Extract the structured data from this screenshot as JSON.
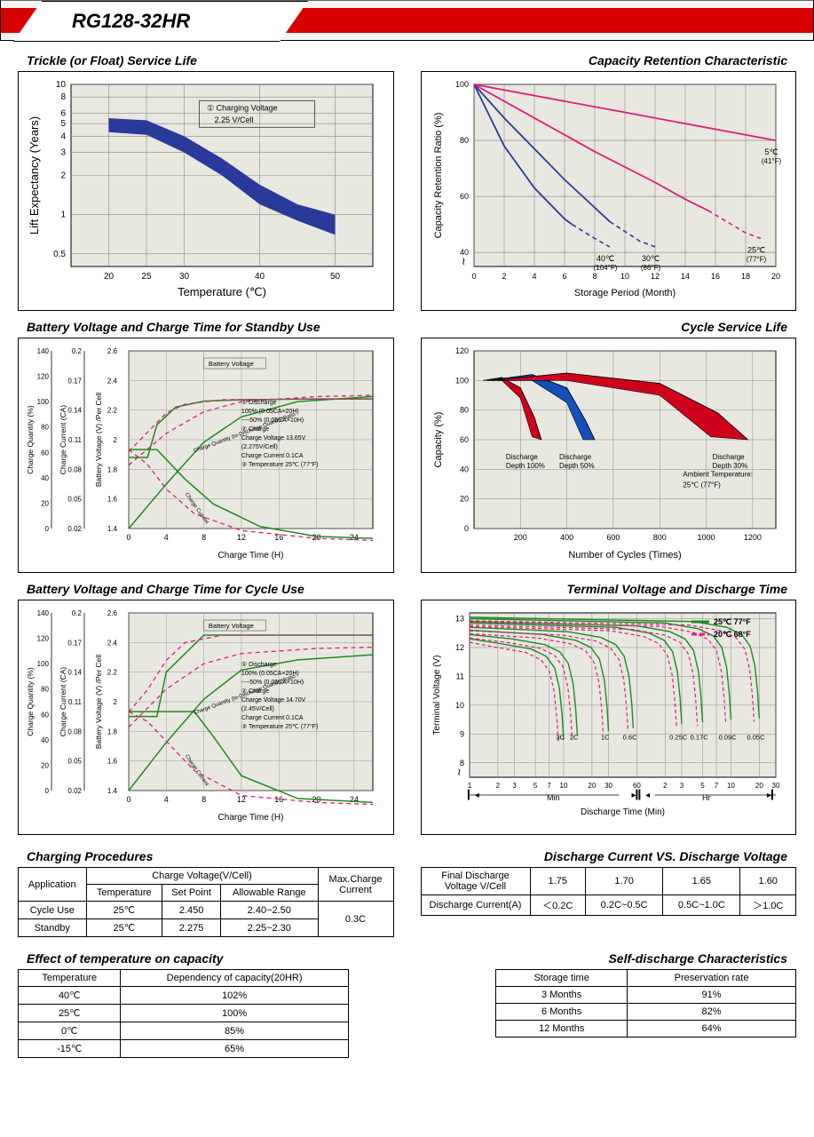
{
  "header": {
    "model": "RG128-32HR"
  },
  "sections": {
    "trickle": {
      "title": "Trickle (or Float) Service Life",
      "xlabel": "Temperature (℃)",
      "ylabel": "Lift  Expectancy (Years)",
      "x_ticks": [
        20,
        25,
        30,
        40,
        50
      ],
      "y_ticks": [
        0.5,
        1,
        2,
        3,
        4,
        5,
        6,
        8,
        10
      ],
      "xlim": [
        15,
        55
      ],
      "ylim_log": [
        0.4,
        10
      ],
      "band_top": [
        [
          20,
          5.5
        ],
        [
          25,
          5.3
        ],
        [
          30,
          4.0
        ],
        [
          35,
          2.7
        ],
        [
          40,
          1.7
        ],
        [
          45,
          1.2
        ],
        [
          50,
          1.0
        ]
      ],
      "band_bot": [
        [
          20,
          4.3
        ],
        [
          25,
          4.1
        ],
        [
          30,
          3.0
        ],
        [
          35,
          2.0
        ],
        [
          40,
          1.2
        ],
        [
          45,
          0.9
        ],
        [
          50,
          0.7
        ]
      ],
      "band_color": "#2a3a9a",
      "note": "① Charging Voltage\n    2.25 V/Cell",
      "background": "#e8e8e0",
      "grid_color": "#888"
    },
    "capacity_retention": {
      "title": "Capacity Retention Characteristic",
      "xlabel": "Storage Period (Month)",
      "ylabel": "Capacity Retention Ratio (%)",
      "x_ticks": [
        0,
        2,
        4,
        6,
        8,
        10,
        12,
        14,
        16,
        18,
        20
      ],
      "y_ticks": [
        40,
        60,
        80,
        100
      ],
      "xlim": [
        0,
        20
      ],
      "ylim": [
        35,
        100
      ],
      "curves": [
        {
          "label": "40℃",
          "sub": "(104°F)",
          "color": "#2a3a9a",
          "solid": [
            [
              0,
              100
            ],
            [
              2,
              78
            ],
            [
              4,
              63
            ],
            [
              6,
              52
            ],
            [
              6.5,
              50
            ]
          ],
          "dash": [
            [
              6.5,
              50
            ],
            [
              8,
              45
            ],
            [
              9,
              42
            ]
          ]
        },
        {
          "label": "30℃",
          "sub": "(86°F)",
          "color": "#2a3a9a",
          "solid": [
            [
              0,
              100
            ],
            [
              2,
              88
            ],
            [
              4,
              77
            ],
            [
              6,
              66
            ],
            [
              8,
              56
            ],
            [
              9,
              51
            ]
          ],
          "dash": [
            [
              9,
              51
            ],
            [
              11,
              44
            ],
            [
              12,
              42
            ]
          ]
        },
        {
          "label": "25℃",
          "sub": "(77°F)",
          "color": "#e21a7a",
          "solid": [
            [
              0,
              100
            ],
            [
              4,
              88
            ],
            [
              8,
              76
            ],
            [
              12,
              65
            ],
            [
              14,
              59
            ],
            [
              15.5,
              55
            ]
          ],
          "dash": [
            [
              15.5,
              55
            ],
            [
              18,
              47
            ],
            [
              19,
              45
            ]
          ]
        },
        {
          "label": "5℃",
          "sub": "(41°F)",
          "color": "#e21a7a",
          "solid": [
            [
              0,
              100
            ],
            [
              10,
              90
            ],
            [
              20,
              80
            ]
          ],
          "dash": []
        }
      ],
      "background": "#e8e8e0",
      "grid_color": "#888"
    },
    "charge_standby": {
      "title": "Battery Voltage and Charge Time for Standby Use",
      "xlabel": "Charge Time (H)",
      "x_ticks": [
        0,
        4,
        8,
        12,
        16,
        20,
        24
      ],
      "xlim": [
        0,
        26
      ],
      "axes": [
        {
          "label": "Charge Quantity (%)",
          "ticks": [
            0,
            20,
            40,
            60,
            80,
            100,
            120,
            140
          ]
        },
        {
          "label": "Charge Current (CA)",
          "ticks": [
            0.02,
            0.05,
            0.08,
            0.11,
            0.14,
            0.17,
            0.2
          ]
        },
        {
          "label": "Battery Voltage (V) /Per Cell",
          "ticks": [
            1.4,
            1.6,
            1.8,
            2.0,
            2.2,
            2.4,
            2.6
          ]
        }
      ],
      "notes": [
        "① Discharge",
        "   100% (0.05CA×20H)",
        "   ----50% (0.05CA×10H)",
        "② Charge",
        "   Charge Voltage 13.65V",
        "   (2.275V/Cell)",
        "   Charge Current 0.1CA",
        "③ Temperature 25℃ (77°F)"
      ],
      "volt_solid": {
        "color": "#1e8a1e",
        "pts": [
          [
            0,
            1.88
          ],
          [
            2,
            1.88
          ],
          [
            3,
            2.1
          ],
          [
            5,
            2.22
          ],
          [
            8,
            2.26
          ],
          [
            12,
            2.27
          ],
          [
            20,
            2.275
          ],
          [
            26,
            2.275
          ]
        ]
      },
      "volt_dash": {
        "color": "#e21a7a",
        "pts": [
          [
            0,
            1.92
          ],
          [
            2,
            2.05
          ],
          [
            4,
            2.18
          ],
          [
            6,
            2.24
          ],
          [
            10,
            2.27
          ],
          [
            20,
            2.275
          ],
          [
            26,
            2.275
          ]
        ]
      },
      "curr_solid": {
        "color": "#1e8a1e",
        "pts": [
          [
            0,
            0.1
          ],
          [
            3,
            0.1
          ],
          [
            6,
            0.07
          ],
          [
            9,
            0.045
          ],
          [
            14,
            0.022
          ],
          [
            20,
            0.012
          ],
          [
            26,
            0.01
          ]
        ]
      },
      "curr_dash": {
        "color": "#e21a7a",
        "pts": [
          [
            0,
            0.1
          ],
          [
            2,
            0.085
          ],
          [
            4,
            0.06
          ],
          [
            7,
            0.035
          ],
          [
            12,
            0.018
          ],
          [
            20,
            0.01
          ],
          [
            26,
            0.008
          ]
        ]
      },
      "qty_solid": {
        "color": "#1e8a1e",
        "pts": [
          [
            0,
            0
          ],
          [
            4,
            35
          ],
          [
            8,
            68
          ],
          [
            12,
            88
          ],
          [
            18,
            100
          ],
          [
            26,
            104
          ]
        ]
      },
      "qty_dash": {
        "color": "#e21a7a",
        "pts": [
          [
            0,
            50
          ],
          [
            4,
            75
          ],
          [
            8,
            92
          ],
          [
            12,
            100
          ],
          [
            20,
            104
          ],
          [
            26,
            105
          ]
        ]
      },
      "annot_bv": "Battery Voltage",
      "annot_cq": "Charge Quantity (to-Discharge Quantity)Ratio",
      "annot_cc": "Charge Current",
      "background": "#e8e8e0",
      "grid_color": "#999"
    },
    "cycle_life": {
      "title": "Cycle Service Life",
      "xlabel": "Number of Cycles (Times)",
      "ylabel": "Capacity (%)",
      "x_ticks": [
        200,
        400,
        600,
        800,
        1000,
        1200
      ],
      "y_ticks": [
        0,
        20,
        40,
        60,
        80,
        100,
        120
      ],
      "xlim": [
        0,
        1300
      ],
      "ylim": [
        0,
        120
      ],
      "wedges": [
        {
          "label": "Discharge\nDepth 100%",
          "color": "#cf001c",
          "outer": [
            [
              40,
              100
            ],
            [
              120,
              102
            ],
            [
              200,
              95
            ],
            [
              260,
              75
            ],
            [
              290,
              60
            ]
          ],
          "inner": [
            [
              40,
              100
            ],
            [
              120,
              100
            ],
            [
              200,
              88
            ],
            [
              250,
              62
            ]
          ]
        },
        {
          "label": "Discharge\nDepth 50%",
          "color": "#164fbc",
          "outer": [
            [
              60,
              100
            ],
            [
              250,
              104
            ],
            [
              400,
              95
            ],
            [
              480,
              73
            ],
            [
              520,
              60
            ]
          ],
          "inner": [
            [
              60,
              100
            ],
            [
              250,
              100
            ],
            [
              400,
              85
            ],
            [
              470,
              60
            ]
          ]
        },
        {
          "label": "Discharge\nDepth 30%",
          "color": "#cf001c",
          "outer": [
            [
              80,
              100
            ],
            [
              400,
              105
            ],
            [
              800,
              98
            ],
            [
              1050,
              78
            ],
            [
              1180,
              60
            ]
          ],
          "inner": [
            [
              80,
              100
            ],
            [
              400,
              100
            ],
            [
              800,
              90
            ],
            [
              1020,
              62
            ]
          ]
        }
      ],
      "ambient": "Ambient Temperature:\n25℃ (77°F)",
      "background": "#e8e8e0",
      "grid_color": "#888"
    },
    "charge_cycle": {
      "title": "Battery Voltage and Charge Time for Cycle Use",
      "xlabel": "Charge Time (H)",
      "x_ticks": [
        0,
        4,
        8,
        12,
        16,
        20,
        24
      ],
      "xlim": [
        0,
        26
      ],
      "axes": [
        {
          "label": "Charge Quantity (%)",
          "ticks": [
            0,
            20,
            40,
            60,
            80,
            100,
            120,
            140
          ]
        },
        {
          "label": "Charge Current (CA)",
          "ticks": [
            0.02,
            0.05,
            0.08,
            0.11,
            0.14,
            0.17,
            0.2
          ]
        },
        {
          "label": "Battery Voltage (V) /Per Cell",
          "ticks": [
            1.4,
            1.6,
            1.8,
            2.0,
            2.2,
            2.4,
            2.6
          ]
        }
      ],
      "notes": [
        "① Discharge",
        "   100% (0.05CA×20H)",
        "   ----50% (0.05CA×10H)",
        "② Charge",
        "   Charge Voltage 14.70V",
        "   (2.45V/Cell)",
        "   Charge Current 0.1CA",
        "③ Temperature 25℃ (77°F)"
      ],
      "volt_solid": {
        "color": "#1e8a1e",
        "pts": [
          [
            0,
            1.9
          ],
          [
            3,
            1.9
          ],
          [
            4,
            2.2
          ],
          [
            8,
            2.45
          ],
          [
            10,
            2.45
          ],
          [
            26,
            2.45
          ]
        ]
      },
      "volt_dash": {
        "color": "#e21a7a",
        "pts": [
          [
            0,
            1.93
          ],
          [
            2,
            2.08
          ],
          [
            4,
            2.28
          ],
          [
            6,
            2.4
          ],
          [
            10,
            2.45
          ],
          [
            26,
            2.45
          ]
        ]
      },
      "curr_solid": {
        "color": "#1e8a1e",
        "pts": [
          [
            0,
            0.1
          ],
          [
            7,
            0.1
          ],
          [
            9,
            0.075
          ],
          [
            12,
            0.035
          ],
          [
            18,
            0.012
          ],
          [
            26,
            0.008
          ]
        ]
      },
      "curr_dash": {
        "color": "#e21a7a",
        "pts": [
          [
            0,
            0.1
          ],
          [
            2,
            0.09
          ],
          [
            4,
            0.07
          ],
          [
            7,
            0.04
          ],
          [
            12,
            0.015
          ],
          [
            20,
            0.008
          ],
          [
            26,
            0.006
          ]
        ]
      },
      "qty_solid": {
        "color": "#1e8a1e",
        "pts": [
          [
            0,
            0
          ],
          [
            4,
            38
          ],
          [
            8,
            72
          ],
          [
            12,
            95
          ],
          [
            18,
            103
          ],
          [
            26,
            107
          ]
        ]
      },
      "qty_dash": {
        "color": "#e21a7a",
        "pts": [
          [
            0,
            50
          ],
          [
            4,
            80
          ],
          [
            8,
            100
          ],
          [
            12,
            108
          ],
          [
            20,
            112
          ],
          [
            26,
            113
          ]
        ]
      },
      "annot_bv": "Battery Voltage",
      "annot_cq": "Charge Quantity (to-Discharge Quantity)Ratio",
      "annot_cc": "Charge Current",
      "background": "#e8e8e0",
      "grid_color": "#999"
    },
    "terminal_voltage": {
      "title": "Terminal Voltage and Discharge Time",
      "xlabel": "Discharge Time (Min)",
      "ylabel": "Terminal Voltage (V)",
      "y_ticks": [
        8,
        9,
        10,
        11,
        12,
        13
      ],
      "ylim": [
        7.5,
        13.2
      ],
      "x_min_ticks": [
        1,
        2,
        3,
        5,
        7,
        10,
        20,
        30,
        60
      ],
      "x_hr_ticks": [
        2,
        3,
        5,
        7,
        10,
        20,
        30
      ],
      "legend": [
        {
          "label": "25℃ 77°F",
          "color": "#1e8a1e"
        },
        {
          "label": "20℃ 68°F",
          "color": "#e21a7a"
        }
      ],
      "curves": [
        {
          "rate": "3C",
          "x_end": 10,
          "color": "#1e8a1e"
        },
        {
          "rate": "2C",
          "x_end": 14,
          "color": "#1e8a1e"
        },
        {
          "rate": "1C",
          "x_end": 30,
          "color": "#1e8a1e"
        },
        {
          "rate": "0.6C",
          "x_end": 55,
          "color": "#1e8a1e"
        },
        {
          "rate": "0.25C",
          "x_end": 180,
          "color": "#1e8a1e"
        },
        {
          "rate": "0.17C",
          "x_end": 300,
          "color": "#1e8a1e"
        },
        {
          "rate": "0.09C",
          "x_end": 600,
          "color": "#1e8a1e"
        },
        {
          "rate": "0.05C",
          "x_end": 1200,
          "color": "#1e8a1e"
        }
      ],
      "min_label": "Min",
      "hr_label": "Hr",
      "background": "#e8e8e0",
      "grid_color": "#888"
    }
  },
  "tables": {
    "charging_procedures": {
      "title": "Charging Procedures",
      "headers": {
        "app": "Application",
        "cv": "Charge Voltage(V/Cell)",
        "temp": "Temperature",
        "sp": "Set Point",
        "ar": "Allowable Range",
        "max": "Max.Charge Current"
      },
      "rows": [
        {
          "app": "Cycle Use",
          "temp": "25℃",
          "sp": "2.450",
          "ar": "2.40~2.50"
        },
        {
          "app": "Standby",
          "temp": "25℃",
          "sp": "2.275",
          "ar": "2.25~2.30"
        }
      ],
      "max_current": "0.3C"
    },
    "discharge_vs_voltage": {
      "title": "Discharge Current VS. Discharge Voltage",
      "h1": "Final Discharge Voltage V/Cell",
      "volts": [
        "1.75",
        "1.70",
        "1.65",
        "1.60"
      ],
      "h2": "Discharge Current(A)",
      "currents": [
        "＜0.2C",
        "0.2C~0.5C",
        "0.5C~1.0C",
        "＞1.0C"
      ]
    },
    "temp_capacity": {
      "title": "Effect of temperature on capacity",
      "h1": "Temperature",
      "h2": "Dependency of capacity(20HR)",
      "rows": [
        [
          "40℃",
          "102%"
        ],
        [
          "25℃",
          "100%"
        ],
        [
          "0℃",
          "85%"
        ],
        [
          "-15℃",
          "65%"
        ]
      ]
    },
    "self_discharge": {
      "title": "Self-discharge Characteristics",
      "h1": "Storage time",
      "h2": "Preservation rate",
      "rows": [
        [
          "3 Months",
          "91%"
        ],
        [
          "6 Months",
          "82%"
        ],
        [
          "12 Months",
          "64%"
        ]
      ]
    }
  }
}
